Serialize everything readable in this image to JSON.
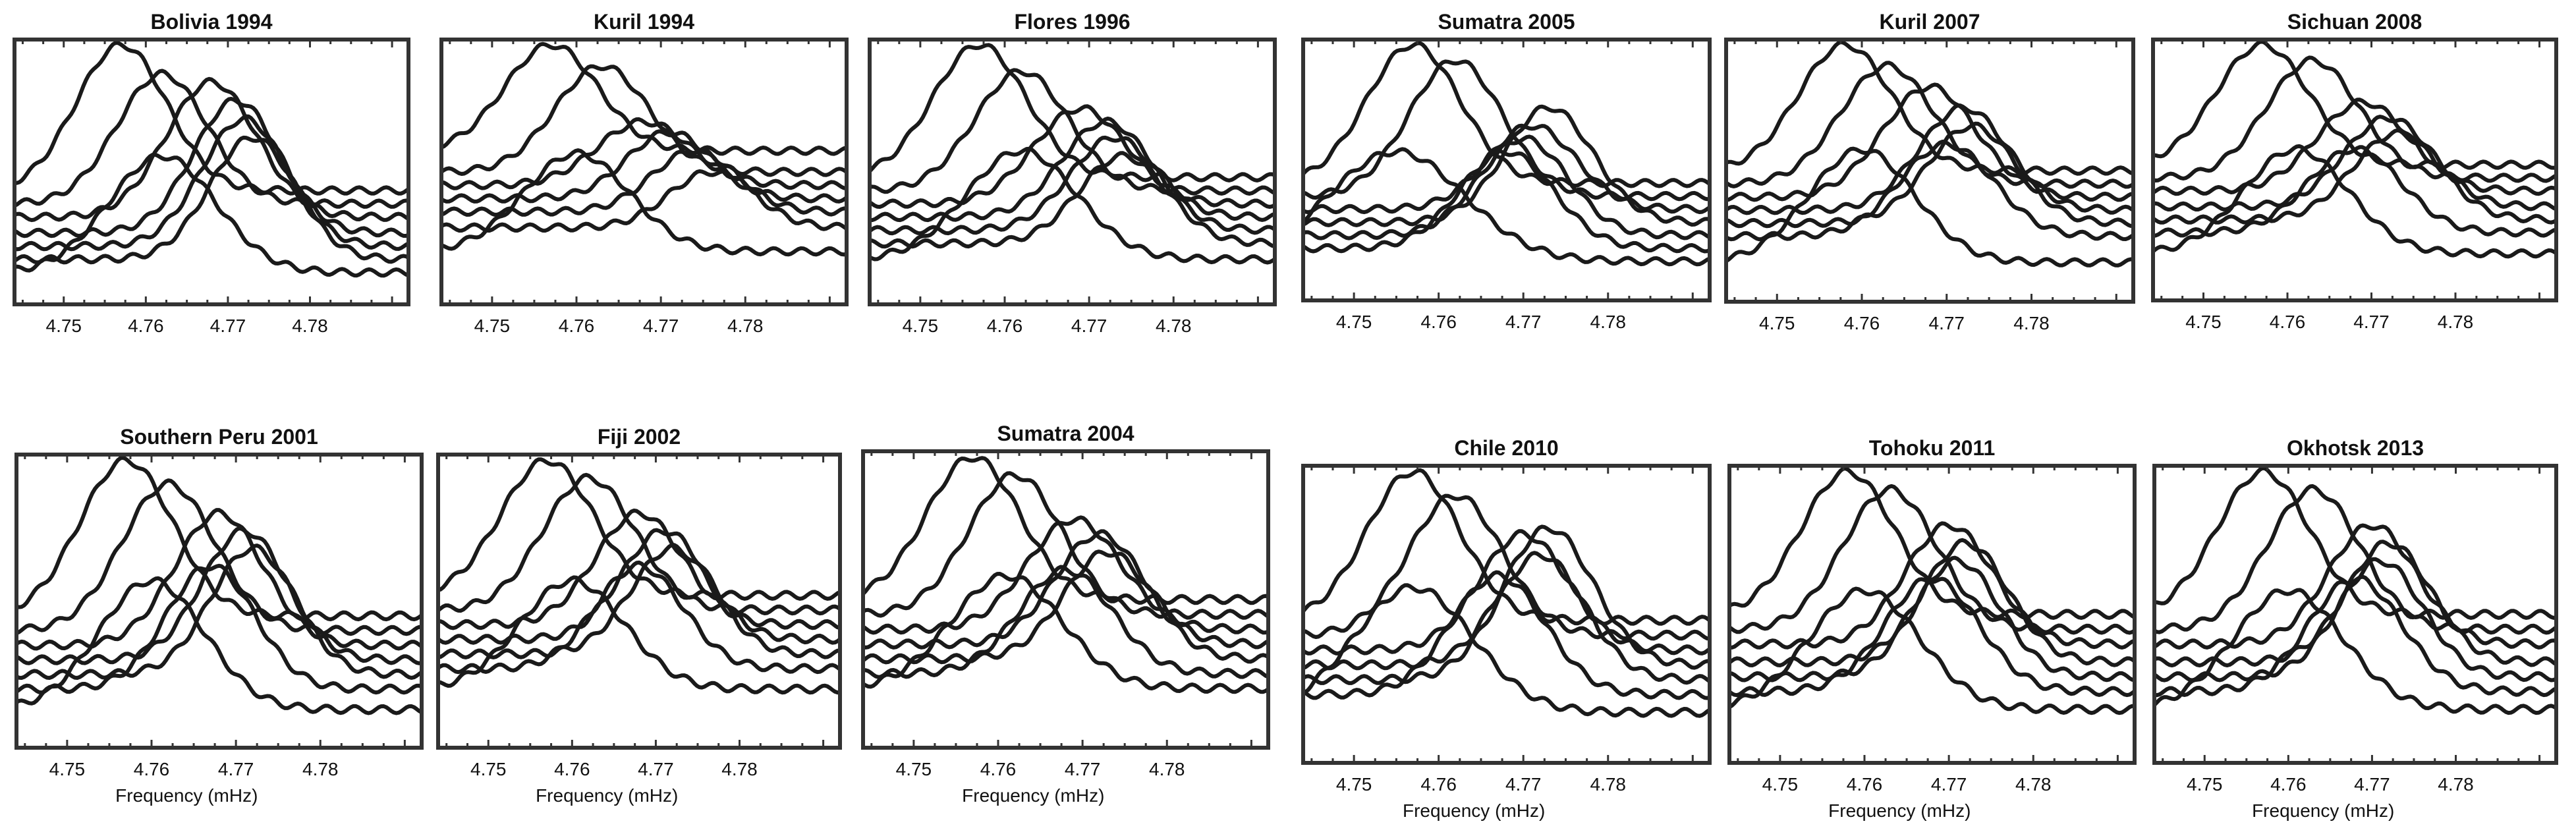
{
  "chart_data": [
    {
      "type": "line",
      "title": "Bolivia 1994",
      "xlabel": "",
      "xticks": [
        "4.75",
        "4.76",
        "4.77",
        "4.78"
      ],
      "xlim": [
        4.744,
        4.792
      ],
      "peaks": [
        [
          4.757,
          0.98,
          0.0055
        ],
        [
          4.762,
          0.87,
          0.0055
        ],
        [
          4.768,
          0.84,
          0.0055
        ],
        [
          4.771,
          0.77,
          0.0052
        ],
        [
          4.772,
          0.7,
          0.0052
        ],
        [
          4.773,
          0.63,
          0.0052
        ],
        [
          4.762,
          0.56,
          0.0065
        ]
      ],
      "baselines": [
        0.43,
        0.38,
        0.33,
        0.27,
        0.22,
        0.17,
        0.12
      ]
    },
    {
      "type": "line",
      "title": "Kuril 1994",
      "xlabel": "",
      "xticks": [
        "4.75",
        "4.76",
        "4.77",
        "4.78"
      ],
      "xlim": [
        4.744,
        4.792
      ],
      "peaks": [
        [
          4.757,
          0.98,
          0.0055
        ],
        [
          4.763,
          0.9,
          0.0055
        ],
        [
          4.768,
          0.69,
          0.0055
        ],
        [
          4.771,
          0.65,
          0.005
        ],
        [
          4.774,
          0.58,
          0.005
        ],
        [
          4.776,
          0.5,
          0.005
        ],
        [
          4.76,
          0.57,
          0.0062
        ]
      ],
      "baselines": [
        0.58,
        0.5,
        0.45,
        0.4,
        0.35,
        0.29,
        0.2
      ]
    },
    {
      "type": "line",
      "title": "Flores 1996",
      "xlabel": "",
      "xticks": [
        "4.75",
        "4.76",
        "4.77",
        "4.78"
      ],
      "xlim": [
        4.744,
        4.792
      ],
      "peaks": [
        [
          4.757,
          0.98,
          0.0055
        ],
        [
          4.762,
          0.88,
          0.0055
        ],
        [
          4.769,
          0.74,
          0.0055
        ],
        [
          4.772,
          0.69,
          0.0052
        ],
        [
          4.773,
          0.63,
          0.0052
        ],
        [
          4.774,
          0.56,
          0.0052
        ],
        [
          4.762,
          0.58,
          0.0065
        ]
      ],
      "baselines": [
        0.48,
        0.43,
        0.38,
        0.33,
        0.28,
        0.23,
        0.17
      ]
    },
    {
      "type": "line",
      "title": "Sumatra 2005",
      "xlabel": "",
      "xticks": [
        "4.75",
        "4.76",
        "4.77",
        "4.78"
      ],
      "xlim": [
        4.744,
        4.792
      ],
      "peaks": [
        [
          4.757,
          0.98,
          0.0055
        ],
        [
          4.762,
          0.92,
          0.0055
        ],
        [
          4.771,
          0.67,
          0.0052
        ],
        [
          4.773,
          0.74,
          0.0052
        ],
        [
          4.77,
          0.62,
          0.0052
        ],
        [
          4.768,
          0.57,
          0.0055
        ],
        [
          4.755,
          0.57,
          0.008
        ]
      ],
      "baselines": [
        0.45,
        0.4,
        0.35,
        0.3,
        0.25,
        0.2,
        0.15
      ]
    },
    {
      "type": "line",
      "title": "Kuril 2007",
      "xlabel": "",
      "xticks": [
        "4.75",
        "4.76",
        "4.77",
        "4.78"
      ],
      "xlim": [
        4.744,
        4.792
      ],
      "peaks": [
        [
          4.758,
          0.98,
          0.0055
        ],
        [
          4.763,
          0.9,
          0.0055
        ],
        [
          4.768,
          0.82,
          0.0055
        ],
        [
          4.772,
          0.74,
          0.0052
        ],
        [
          4.773,
          0.67,
          0.0052
        ],
        [
          4.77,
          0.6,
          0.0055
        ],
        [
          4.76,
          0.58,
          0.0062
        ]
      ],
      "baselines": [
        0.5,
        0.45,
        0.4,
        0.35,
        0.3,
        0.25,
        0.15
      ]
    },
    {
      "type": "line",
      "title": "Sichuan 2008",
      "xlabel": "",
      "xticks": [
        "4.75",
        "4.76",
        "4.77",
        "4.78"
      ],
      "xlim": [
        4.744,
        4.792
      ],
      "peaks": [
        [
          4.757,
          0.98,
          0.0055
        ],
        [
          4.763,
          0.92,
          0.0055
        ],
        [
          4.769,
          0.76,
          0.0055
        ],
        [
          4.772,
          0.7,
          0.0052
        ],
        [
          4.773,
          0.64,
          0.0052
        ],
        [
          4.768,
          0.58,
          0.0055
        ],
        [
          4.761,
          0.58,
          0.0062
        ]
      ],
      "baselines": [
        0.52,
        0.47,
        0.42,
        0.36,
        0.31,
        0.26,
        0.18
      ]
    },
    {
      "type": "line",
      "title": "Southern Peru 2001",
      "xlabel": "Frequency (mHz)",
      "xticks": [
        "4.75",
        "4.76",
        "4.77",
        "4.78"
      ],
      "xlim": [
        4.744,
        4.792
      ],
      "peaks": [
        [
          4.757,
          0.98,
          0.0055
        ],
        [
          4.762,
          0.9,
          0.0055
        ],
        [
          4.768,
          0.8,
          0.0052
        ],
        [
          4.771,
          0.74,
          0.005
        ],
        [
          4.772,
          0.68,
          0.005
        ],
        [
          4.767,
          0.62,
          0.0052
        ],
        [
          4.76,
          0.57,
          0.0062
        ]
      ],
      "baselines": [
        0.45,
        0.4,
        0.35,
        0.3,
        0.25,
        0.2,
        0.13
      ]
    },
    {
      "type": "line",
      "title": "Fiji 2002",
      "xlabel": "Frequency (mHz)",
      "xticks": [
        "4.75",
        "4.76",
        "4.77",
        "4.78"
      ],
      "xlim": [
        4.744,
        4.792
      ],
      "peaks": [
        [
          4.757,
          0.98,
          0.0055
        ],
        [
          4.762,
          0.92,
          0.0055
        ],
        [
          4.768,
          0.8,
          0.0052
        ],
        [
          4.771,
          0.74,
          0.005
        ],
        [
          4.772,
          0.68,
          0.005
        ],
        [
          4.768,
          0.62,
          0.0052
        ],
        [
          4.76,
          0.57,
          0.0062
        ]
      ],
      "baselines": [
        0.52,
        0.47,
        0.42,
        0.37,
        0.32,
        0.27,
        0.2
      ]
    },
    {
      "type": "line",
      "title": "Sumatra 2004",
      "xlabel": "Frequency (mHz)",
      "xticks": [
        "4.75",
        "4.76",
        "4.77",
        "4.78"
      ],
      "xlim": [
        4.744,
        4.792
      ],
      "peaks": [
        [
          4.757,
          0.98,
          0.0055
        ],
        [
          4.762,
          0.92,
          0.0055
        ],
        [
          4.769,
          0.77,
          0.0055
        ],
        [
          4.772,
          0.72,
          0.0052
        ],
        [
          4.773,
          0.66,
          0.0052
        ],
        [
          4.768,
          0.6,
          0.0055
        ],
        [
          4.761,
          0.58,
          0.0065
        ]
      ],
      "baselines": [
        0.5,
        0.45,
        0.4,
        0.35,
        0.3,
        0.25,
        0.2
      ]
    },
    {
      "type": "line",
      "title": "Chile 2010",
      "xlabel": "Frequency (mHz)",
      "xticks": [
        "4.75",
        "4.76",
        "4.77",
        "4.78"
      ],
      "xlim": [
        4.744,
        4.792
      ],
      "peaks": [
        [
          4.757,
          0.98,
          0.0055
        ],
        [
          4.762,
          0.9,
          0.0055
        ],
        [
          4.77,
          0.77,
          0.0052
        ],
        [
          4.773,
          0.79,
          0.0052
        ],
        [
          4.772,
          0.7,
          0.0052
        ],
        [
          4.767,
          0.63,
          0.0055
        ],
        [
          4.757,
          0.59,
          0.007
        ]
      ],
      "baselines": [
        0.48,
        0.43,
        0.38,
        0.33,
        0.28,
        0.23,
        0.17
      ]
    },
    {
      "type": "line",
      "title": "Tohoku 2011",
      "xlabel": "Frequency (mHz)",
      "xticks": [
        "4.75",
        "4.76",
        "4.77",
        "4.78"
      ],
      "xlim": [
        4.744,
        4.792
      ],
      "peaks": [
        [
          4.758,
          0.98,
          0.0055
        ],
        [
          4.763,
          0.92,
          0.0055
        ],
        [
          4.77,
          0.8,
          0.0052
        ],
        [
          4.772,
          0.74,
          0.005
        ],
        [
          4.771,
          0.68,
          0.005
        ],
        [
          4.768,
          0.62,
          0.0055
        ],
        [
          4.76,
          0.58,
          0.0065
        ]
      ],
      "baselines": [
        0.5,
        0.45,
        0.4,
        0.34,
        0.29,
        0.24,
        0.18
      ]
    },
    {
      "type": "line",
      "title": "Okhotsk 2013",
      "xlabel": "Frequency (mHz)",
      "xticks": [
        "4.75",
        "4.76",
        "4.77",
        "4.78"
      ],
      "xlim": [
        4.744,
        4.792
      ],
      "peaks": [
        [
          4.757,
          0.98,
          0.0055
        ],
        [
          4.763,
          0.92,
          0.0055
        ],
        [
          4.77,
          0.8,
          0.0052
        ],
        [
          4.772,
          0.74,
          0.005
        ],
        [
          4.771,
          0.68,
          0.005
        ],
        [
          4.768,
          0.62,
          0.0055
        ],
        [
          4.76,
          0.58,
          0.0065
        ]
      ],
      "baselines": [
        0.5,
        0.45,
        0.4,
        0.34,
        0.29,
        0.24,
        0.18
      ]
    }
  ]
}
